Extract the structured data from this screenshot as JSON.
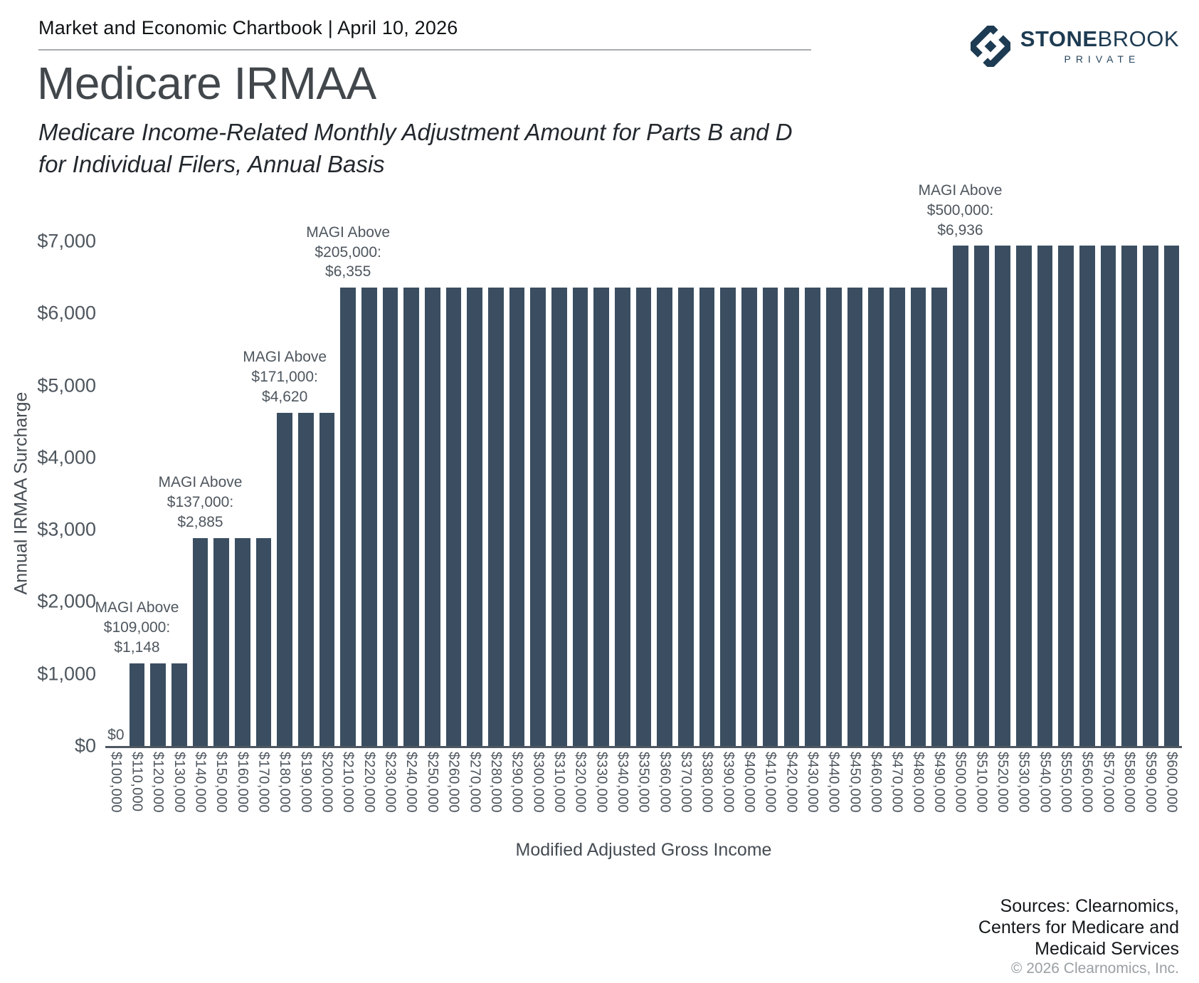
{
  "header": {
    "chartbook_line": "Market and Economic Chartbook | April 10, 2026"
  },
  "logo": {
    "stone": "STONE",
    "brook": "BROOK",
    "private": "PRIVATE"
  },
  "title": "Medicare IRMAA",
  "subtitle_line1": "Medicare Income-Related Monthly Adjustment Amount for Parts B and D",
  "subtitle_line2": "for Individual Filers, Annual Basis",
  "colors": {
    "bar": "#3b4e61",
    "axis_line": "#4e5762",
    "logo_navy": "#1d3b52",
    "tick_text": "#4e565e"
  },
  "chart_data": {
    "type": "bar",
    "title": "Medicare IRMAA",
    "xlabel": "Modified Adjusted Gross Income",
    "ylabel": "Annual IRMAA Surcharge",
    "ylim": [
      0,
      7000
    ],
    "grid": false,
    "legend": false,
    "ytick_values": [
      0,
      1000,
      2000,
      3000,
      4000,
      5000,
      6000,
      7000
    ],
    "ytick_labels": [
      "$0",
      "$1,000",
      "$2,000",
      "$3,000",
      "$4,000",
      "$5,000",
      "$6,000",
      "$7,000"
    ],
    "categories": [
      "$100,000",
      "$110,000",
      "$120,000",
      "$130,000",
      "$140,000",
      "$150,000",
      "$160,000",
      "$170,000",
      "$180,000",
      "$190,000",
      "$200,000",
      "$210,000",
      "$220,000",
      "$230,000",
      "$240,000",
      "$250,000",
      "$260,000",
      "$270,000",
      "$280,000",
      "$290,000",
      "$300,000",
      "$310,000",
      "$320,000",
      "$330,000",
      "$340,000",
      "$350,000",
      "$360,000",
      "$370,000",
      "$380,000",
      "$390,000",
      "$400,000",
      "$410,000",
      "$420,000",
      "$430,000",
      "$440,000",
      "$450,000",
      "$460,000",
      "$470,000",
      "$480,000",
      "$490,000",
      "$500,000",
      "$510,000",
      "$520,000",
      "$530,000",
      "$540,000",
      "$550,000",
      "$560,000",
      "$570,000",
      "$580,000",
      "$590,000",
      "$600,000"
    ],
    "values": [
      0,
      1148,
      1148,
      1148,
      2885,
      2885,
      2885,
      2885,
      4620,
      4620,
      4620,
      6355,
      6355,
      6355,
      6355,
      6355,
      6355,
      6355,
      6355,
      6355,
      6355,
      6355,
      6355,
      6355,
      6355,
      6355,
      6355,
      6355,
      6355,
      6355,
      6355,
      6355,
      6355,
      6355,
      6355,
      6355,
      6355,
      6355,
      6355,
      6355,
      6936,
      6936,
      6936,
      6936,
      6936,
      6936,
      6936,
      6936,
      6936,
      6936,
      6936
    ],
    "zero_label": "$0",
    "annotations": [
      {
        "lines": [
          "MAGI Above",
          "$109,000:",
          "$1,148"
        ],
        "anchor_category": "$110,000",
        "anchor_index": 1,
        "anchor_value": 1148
      },
      {
        "lines": [
          "MAGI Above",
          "$137,000:",
          "$2,885"
        ],
        "anchor_category": "$140,000",
        "anchor_index": 4,
        "anchor_value": 2885
      },
      {
        "lines": [
          "MAGI Above",
          "$171,000:",
          "$4,620"
        ],
        "anchor_category": "$180,000",
        "anchor_index": 8,
        "anchor_value": 4620
      },
      {
        "lines": [
          "MAGI Above",
          "$205,000:",
          "$6,355"
        ],
        "anchor_category": "$210,000",
        "anchor_index": 11,
        "anchor_value": 6355
      },
      {
        "lines": [
          "MAGI Above",
          "$500,000:",
          "$6,936"
        ],
        "anchor_category": "$500,000",
        "anchor_index": 40,
        "anchor_value": 6936
      }
    ]
  },
  "footer": {
    "sources_lines": [
      "Sources: Clearnomics,",
      "Centers for Medicare and",
      "Medicaid Services"
    ],
    "copyright": "© 2026 Clearnomics, Inc."
  }
}
